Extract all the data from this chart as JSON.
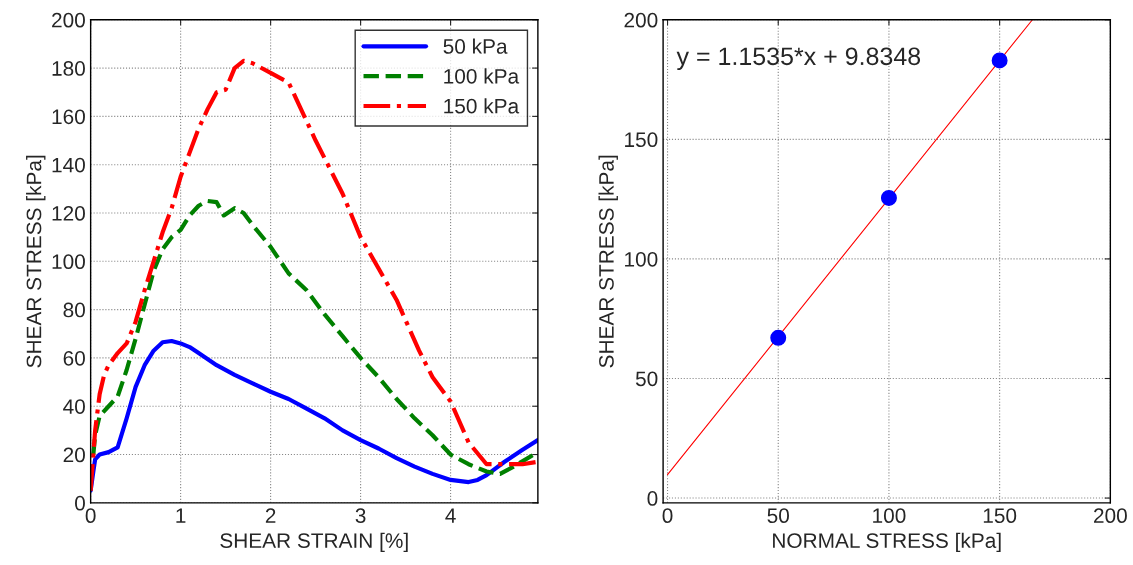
{
  "chart_data": [
    {
      "type": "line",
      "xlabel": "SHEAR STRAIN [%]",
      "ylabel": "SHEAR STRESS [kPa]",
      "xlim": [
        0,
        4.97
      ],
      "ylim": [
        0,
        200
      ],
      "xticks": [
        0,
        1,
        2,
        3,
        4
      ],
      "yticks": [
        0,
        20,
        40,
        60,
        80,
        100,
        120,
        140,
        160,
        180,
        200
      ],
      "grid": true,
      "legend": "top right",
      "series": [
        {
          "name": "50 kPa",
          "color": "#0000ff",
          "line_style": "solid",
          "x": [
            0,
            0.03,
            0.05,
            0.1,
            0.2,
            0.3,
            0.4,
            0.5,
            0.6,
            0.7,
            0.8,
            0.9,
            1.0,
            1.1,
            1.2,
            1.4,
            1.6,
            1.8,
            2.0,
            2.2,
            2.4,
            2.6,
            2.8,
            3.0,
            3.2,
            3.4,
            3.6,
            3.8,
            4.0,
            4.2,
            4.3,
            4.4,
            4.6,
            4.8,
            4.97
          ],
          "values": [
            5,
            13,
            18,
            20,
            21,
            23,
            35,
            48,
            57,
            63,
            66.5,
            67,
            66,
            64.5,
            62,
            57,
            53,
            49.5,
            46,
            43,
            39,
            35,
            30,
            26,
            22.5,
            18.5,
            15,
            12,
            9.5,
            8.6,
            9.5,
            11.5,
            17,
            22,
            26
          ]
        },
        {
          "name": "100 kPa",
          "color": "#008000",
          "line_style": "dashed",
          "x": [
            0.03,
            0.05,
            0.1,
            0.2,
            0.3,
            0.4,
            0.5,
            0.6,
            0.7,
            0.8,
            0.9,
            1.0,
            1.1,
            1.2,
            1.3,
            1.4,
            1.48,
            1.6,
            1.7,
            1.8,
            2.0,
            2.2,
            2.4,
            2.6,
            2.8,
            3.0,
            3.2,
            3.4,
            3.6,
            3.8,
            4.0,
            4.2,
            4.4,
            4.55,
            4.7,
            4.97
          ],
          "values": [
            20,
            28,
            36,
            40,
            44,
            55,
            68,
            82,
            96,
            105,
            110,
            113,
            119,
            123,
            125,
            124.5,
            119,
            122,
            120,
            115,
            106,
            95,
            88,
            78,
            69,
            60,
            52,
            43,
            35,
            28,
            20,
            16,
            13,
            12,
            15,
            21
          ]
        },
        {
          "name": "150 kPa",
          "color": "#ff0000",
          "line_style": "dashdot",
          "x": [
            0,
            0.02,
            0.05,
            0.1,
            0.15,
            0.2,
            0.3,
            0.4,
            0.5,
            0.6,
            0.7,
            0.8,
            0.9,
            1.0,
            1.1,
            1.2,
            1.3,
            1.4,
            1.5,
            1.6,
            1.7,
            1.8,
            2.0,
            2.2,
            2.5,
            2.8,
            3.0,
            3.2,
            3.4,
            3.65,
            3.8,
            4.0,
            4.2,
            4.4,
            4.6,
            4.8,
            4.97
          ],
          "values": [
            5,
            15,
            30,
            45,
            53,
            57,
            62,
            66,
            75,
            88,
            100,
            112,
            122,
            135,
            145,
            155,
            163,
            170,
            171,
            180,
            183,
            182,
            178,
            174,
            150,
            128,
            110,
            97,
            84,
            63,
            52,
            42,
            25,
            16,
            16,
            16,
            17
          ]
        }
      ]
    },
    {
      "type": "scatter",
      "xlabel": "NORMAL STRESS [kPa]",
      "ylabel": "SHEAR STRESS [kPa]",
      "xlim": [
        -2,
        200
      ],
      "ylim": [
        -2,
        200
      ],
      "xticks": [
        0,
        50,
        100,
        150,
        200
      ],
      "yticks": [
        0,
        50,
        100,
        150,
        200
      ],
      "grid": true,
      "annotations": [
        "y = 1.1535*x + 9.8348"
      ],
      "series": [
        {
          "type": "scatter",
          "marker": "circle",
          "color": "#0000ff",
          "x": [
            50,
            100,
            150
          ],
          "values": [
            67,
            125.5,
            183
          ]
        },
        {
          "type": "line",
          "color": "#ff0000",
          "x": [
            0,
            164.8
          ],
          "values": [
            9.8,
            200
          ]
        }
      ]
    }
  ]
}
